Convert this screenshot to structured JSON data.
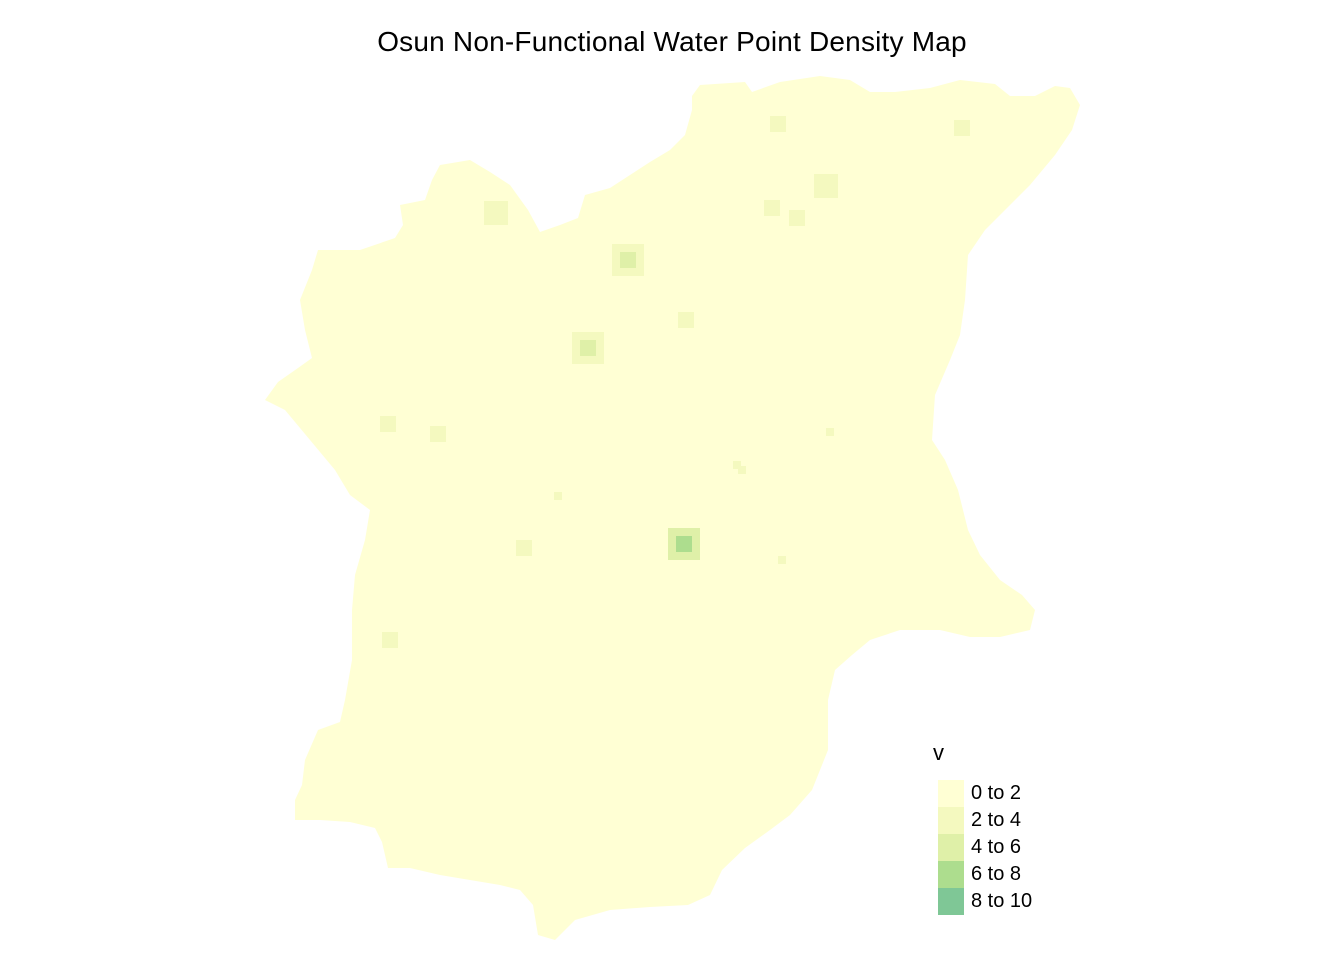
{
  "title": "Osun Non-Functional Water Point Density Map",
  "map": {
    "region": "Osun",
    "fill_color": "#ffffd4"
  },
  "legend": {
    "title": "v",
    "classes": [
      {
        "label": "0 to 2",
        "color": "#ffffd4"
      },
      {
        "label": "2 to 4",
        "color": "#f4f9bf"
      },
      {
        "label": "4 to 6",
        "color": "#dff0a8"
      },
      {
        "label": "6 to 8",
        "color": "#addd8e"
      },
      {
        "label": "8 to 10",
        "color": "#7fc796"
      }
    ]
  },
  "hotspots": [
    {
      "cls": 1,
      "size": 3
    },
    {
      "cls": 1,
      "size": 2
    },
    {
      "cls": 1,
      "size": 2
    },
    {
      "cls": 1,
      "size": 3
    },
    {
      "cls": 1,
      "size": 2
    },
    {
      "cls": 1,
      "size": 2
    },
    {
      "cls": 2,
      "size": 2
    },
    {
      "cls": 1,
      "size": 2
    },
    {
      "cls": 2,
      "size": 2
    },
    {
      "cls": 1,
      "size": 2
    },
    {
      "cls": 1,
      "size": 2
    },
    {
      "cls": 1,
      "size": 1
    },
    {
      "cls": 1,
      "size": 1
    },
    {
      "cls": 1,
      "size": 1
    },
    {
      "cls": 1,
      "size": 2
    },
    {
      "cls": 3,
      "size": 2
    },
    {
      "cls": 1,
      "size": 1
    },
    {
      "cls": 1,
      "size": 2
    },
    {
      "cls": 1,
      "size": 1
    }
  ]
}
